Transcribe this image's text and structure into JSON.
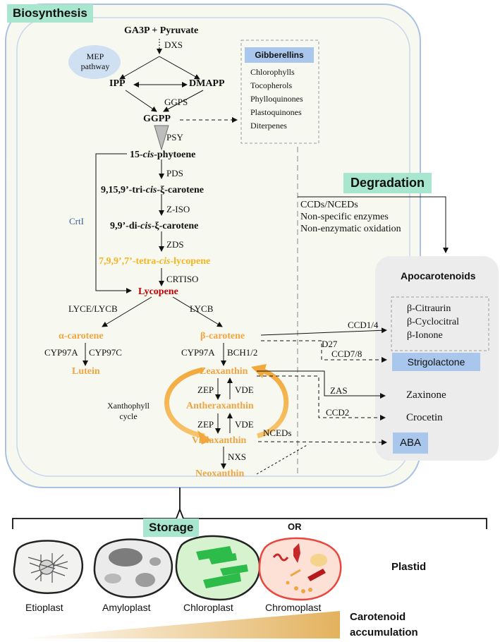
{
  "sections": {
    "biosynthesis": "Biosynthesis",
    "degradation": "Degradation",
    "storage": "Storage"
  },
  "pathway": {
    "mep": "MEP pathway",
    "start": "GA3P + Pyruvate",
    "ipp": "IPP",
    "dmapp": "DMAPP",
    "ggpp": "GGPP",
    "phytoene": "15-cis-phytoene",
    "tricis": "9,15,9’-tri-cis-ξ-carotene",
    "dicis": "9,9’-di-cis-ξ-carotene",
    "tetracis": "7,9,9’,7’-tetra-cis-lycopene",
    "lycopene": "Lycopene",
    "alpha": "α-carotene",
    "beta": "β-carotene",
    "lutein": "Lutein",
    "zeaxanthin": "Zeaxanthin",
    "antheraxanthin": "Antheraxanthin",
    "violaxanthin": "Violaxanthin",
    "neoxanthin": "Neoxanthin",
    "xanthophyll_cycle": "Xanthophyll cycle"
  },
  "enzymes": {
    "dxs": "DXS",
    "ggps": "GGPS",
    "psy": "PSY",
    "pds": "PDS",
    "ziso": "Z-ISO",
    "zds": "ZDS",
    "crtiso": "CRTISO",
    "crti": "CrtI",
    "lyce_lycb": "LYCE/LYCB",
    "lycb": "LYCB",
    "cyp97a_1": "CYP97A",
    "cyp97c": "CYP97C",
    "cyp97a_2": "CYP97A",
    "bch": "BCH1/2",
    "zep1": "ZEP",
    "vde1": "VDE",
    "zep2": "ZEP",
    "vde2": "VDE",
    "nxs": "NXS",
    "nceds": "NCEDs",
    "ccd14": "CCD1/4",
    "d27": "D27",
    "ccd78": "CCD7/8",
    "zas": "ZAS",
    "ccd2": "CCD2"
  },
  "ggpp_products": {
    "title": "Gibberellins",
    "items": [
      "Chlorophylls",
      "Tocopherols",
      "Phylloquinones",
      "Plastoquinones",
      "Diterpenes"
    ]
  },
  "degradation_mechanisms": [
    "CCDs/NCEDs",
    "Non-specific enzymes",
    "Non-enzymatic oxidation"
  ],
  "apocarotenoids": {
    "title": "Apocarotenoids",
    "volatiles": [
      "β-Citraurin",
      "β-Cyclocitral",
      "β-Ionone"
    ],
    "strigolactone": "Strigolactone",
    "zaxinone": "Zaxinone",
    "crocetin": "Crocetin",
    "aba": "ABA"
  },
  "storage": {
    "or": "OR",
    "plastid_label": "Plastid",
    "plastids": [
      "Etioplast",
      "Amyloplast",
      "Chloroplast",
      "Chromoplast"
    ],
    "accumulation": "Carotenoid accumulation"
  },
  "colors": {
    "header_green": "#a8e6cf",
    "tag_blue": "#a9c7ec",
    "carotene_orange": "#f0a442",
    "lycopene_red": "#c00000",
    "tetracis_gold": "#f5b41f",
    "crti_blue": "#3a5fa0",
    "chloroplast_green": "#2dbb4a",
    "chromoplast_red": "#e8463e"
  }
}
